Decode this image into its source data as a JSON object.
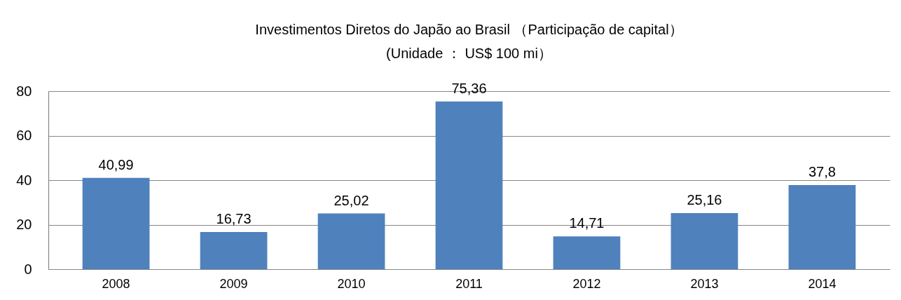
{
  "chart_data": {
    "type": "bar",
    "title": "Investimentos Diretos do Japão ao Brasil （Participação de capital）",
    "subtitle": "(Unidade ： US$ 100 mi）",
    "categories": [
      "2008",
      "2009",
      "2010",
      "2011",
      "2012",
      "2013",
      "2014"
    ],
    "values": [
      40.99,
      16.73,
      25.02,
      75.36,
      14.71,
      25.16,
      37.8
    ],
    "value_labels": [
      "40,99",
      "16,73",
      "25,02",
      "75,36",
      "14,71",
      "25,16",
      "37,8"
    ],
    "color": "#4f81bd",
    "ylim": [
      0,
      80
    ],
    "yticks": [
      0,
      20,
      40,
      60,
      80
    ],
    "grid": "y"
  }
}
